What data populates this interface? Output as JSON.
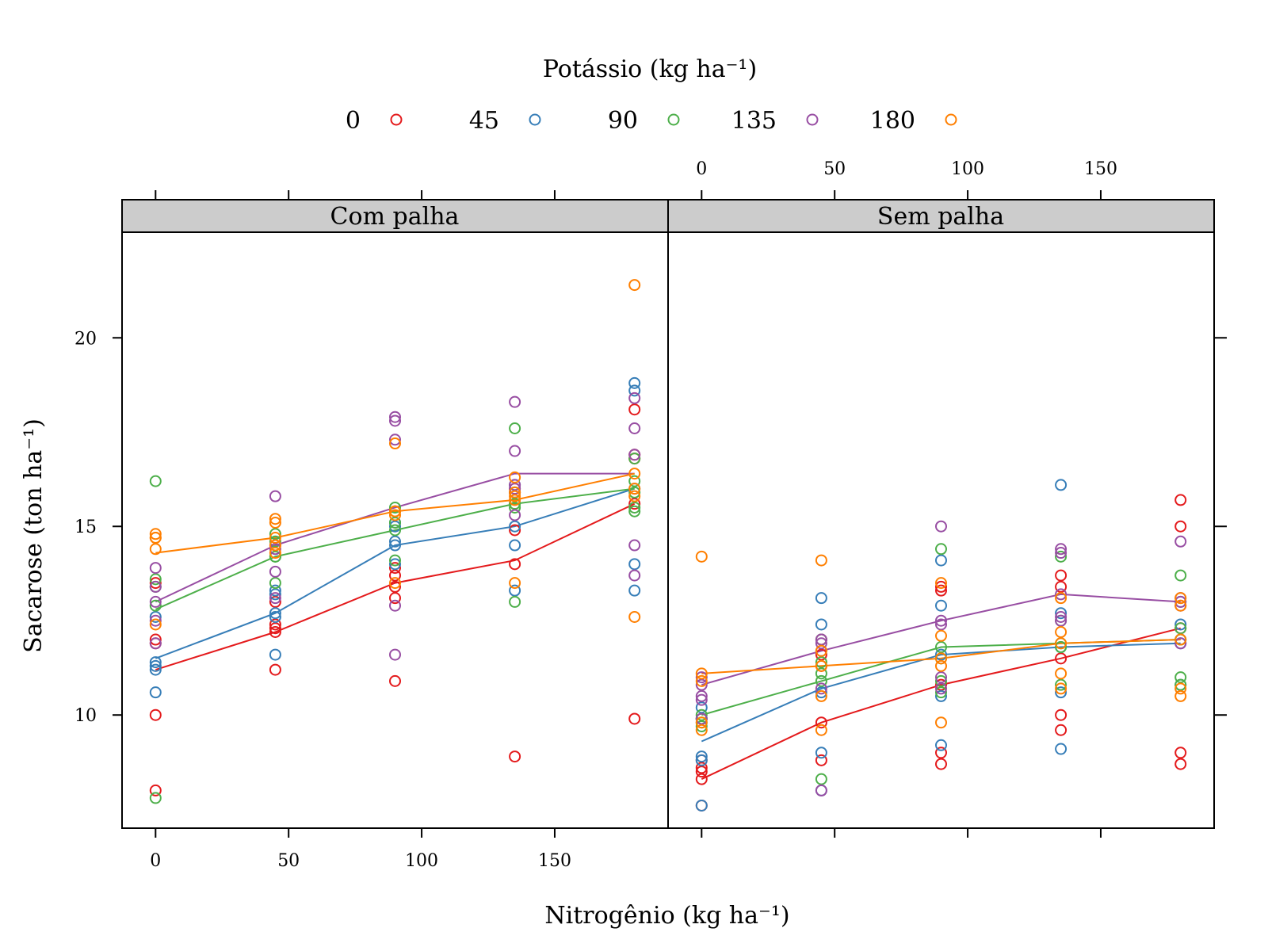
{
  "chart_data": {
    "type": "scatter",
    "legend": {
      "title": "Potássio (kg ha⁻¹)",
      "position": "top",
      "items": [
        {
          "label": "0",
          "color": "#e41a1c"
        },
        {
          "label": "45",
          "color": "#377eb8"
        },
        {
          "label": "90",
          "color": "#4daf4a"
        },
        {
          "label": "135",
          "color": "#984ea3"
        },
        {
          "label": "180",
          "color": "#ff7f00"
        }
      ]
    },
    "xlabel": "Nitrogênio (kg ha⁻¹)",
    "ylabel": "Sacarose (ton ha⁻¹)",
    "xlim": [
      -12.6,
      192.6
    ],
    "ylim": [
      7.0,
      22.8
    ],
    "x_ticks": [
      0,
      50,
      100,
      150
    ],
    "y_ticks": [
      10,
      15,
      20
    ],
    "grid": false,
    "panels": [
      {
        "title": "Com palha",
        "points": [
          {
            "k": 0,
            "x": 0,
            "y": [
              12.0,
              11.9,
              10.0,
              8.0,
              13.5
            ]
          },
          {
            "k": 0,
            "x": 45,
            "y": [
              12.2,
              12.4,
              13.0,
              11.2,
              12.3
            ]
          },
          {
            "k": 0,
            "x": 90,
            "y": [
              13.4,
              13.9,
              13.1,
              10.9,
              13.7
            ]
          },
          {
            "k": 0,
            "x": 135,
            "y": [
              14.0,
              14.9,
              8.9,
              15.9,
              16.0
            ]
          },
          {
            "k": 0,
            "x": 180,
            "y": [
              15.6,
              16.8,
              18.1,
              9.9,
              16.9
            ]
          },
          {
            "k": 45,
            "x": 0,
            "y": [
              11.3,
              11.4,
              10.6,
              11.2,
              12.6
            ]
          },
          {
            "k": 45,
            "x": 45,
            "y": [
              12.7,
              13.2,
              11.6,
              12.6,
              13.3
            ]
          },
          {
            "k": 45,
            "x": 90,
            "y": [
              14.5,
              15.0,
              14.0,
              15.1,
              14.6
            ]
          },
          {
            "k": 45,
            "x": 135,
            "y": [
              15.0,
              14.5,
              13.3,
              15.9,
              16.1
            ]
          },
          {
            "k": 45,
            "x": 180,
            "y": [
              16.0,
              18.8,
              18.6,
              13.3,
              14.0
            ]
          },
          {
            "k": 90,
            "x": 0,
            "y": [
              16.2,
              13.6,
              7.8,
              13.4,
              12.9
            ]
          },
          {
            "k": 90,
            "x": 45,
            "y": [
              14.2,
              14.8,
              13.5,
              14.6,
              14.2
            ]
          },
          {
            "k": 90,
            "x": 90,
            "y": [
              14.9,
              15.5,
              14.1,
              15.4,
              15.1
            ]
          },
          {
            "k": 90,
            "x": 135,
            "y": [
              15.6,
              17.6,
              13.0,
              15.6,
              15.5
            ]
          },
          {
            "k": 90,
            "x": 180,
            "y": [
              15.5,
              15.4,
              15.9,
              16.2,
              16.8
            ]
          },
          {
            "k": 135,
            "x": 0,
            "y": [
              13.9,
              13.0,
              12.5,
              13.4,
              11.9
            ]
          },
          {
            "k": 135,
            "x": 45,
            "y": [
              15.8,
              14.4,
              13.8,
              13.1,
              14.5
            ]
          },
          {
            "k": 135,
            "x": 90,
            "y": [
              17.9,
              17.8,
              17.3,
              12.9,
              11.6
            ]
          },
          {
            "k": 135,
            "x": 135,
            "y": [
              18.3,
              17.0,
              16.0,
              15.3,
              16.1
            ]
          },
          {
            "k": 135,
            "x": 180,
            "y": [
              18.4,
              17.6,
              16.9,
              14.5,
              13.7
            ]
          },
          {
            "k": 180,
            "x": 0,
            "y": [
              14.8,
              14.7,
              14.4,
              12.4,
              14.7
            ]
          },
          {
            "k": 180,
            "x": 45,
            "y": [
              15.2,
              15.1,
              14.5,
              14.3,
              14.7
            ]
          },
          {
            "k": 180,
            "x": 90,
            "y": [
              17.2,
              15.4,
              15.3,
              13.5,
              15.4
            ]
          },
          {
            "k": 180,
            "x": 135,
            "y": [
              16.3,
              15.9,
              13.5,
              15.8,
              15.7
            ]
          },
          {
            "k": 180,
            "x": 180,
            "y": [
              21.4,
              16.4,
              15.8,
              12.6,
              16.0
            ]
          }
        ],
        "lines": [
          {
            "k": 0,
            "x": [
              0,
              45,
              90,
              135,
              180
            ],
            "y": [
              11.2,
              12.2,
              13.5,
              14.1,
              15.6
            ]
          },
          {
            "k": 45,
            "x": [
              0,
              45,
              90,
              135,
              180
            ],
            "y": [
              11.5,
              12.7,
              14.5,
              15.0,
              16.0
            ]
          },
          {
            "k": 90,
            "x": [
              0,
              45,
              90,
              135,
              180
            ],
            "y": [
              12.8,
              14.2,
              14.9,
              15.6,
              16.0
            ]
          },
          {
            "k": 135,
            "x": [
              0,
              45,
              90,
              135,
              180
            ],
            "y": [
              13.0,
              14.5,
              15.5,
              16.4,
              16.4
            ]
          },
          {
            "k": 180,
            "x": [
              0,
              45,
              90,
              135,
              180
            ],
            "y": [
              14.3,
              14.7,
              15.4,
              15.7,
              16.4
            ]
          }
        ]
      },
      {
        "title": "Sem palha",
        "points": [
          {
            "k": 0,
            "x": 0,
            "y": [
              8.3,
              8.5,
              8.6,
              7.6,
              8.8
            ]
          },
          {
            "k": 0,
            "x": 45,
            "y": [
              9.8,
              8.8,
              11.3,
              11.6,
              12.0
            ]
          },
          {
            "k": 0,
            "x": 90,
            "y": [
              10.8,
              9.0,
              8.7,
              13.4,
              13.3
            ]
          },
          {
            "k": 0,
            "x": 135,
            "y": [
              11.5,
              10.0,
              9.6,
              13.7,
              13.4
            ]
          },
          {
            "k": 0,
            "x": 180,
            "y": [
              12.3,
              15.0,
              15.7,
              8.7,
              9.0
            ]
          },
          {
            "k": 45,
            "x": 0,
            "y": [
              8.9,
              7.6,
              10.2,
              9.9,
              8.8
            ]
          },
          {
            "k": 45,
            "x": 45,
            "y": [
              10.6,
              13.1,
              12.4,
              9.0,
              8.0
            ]
          },
          {
            "k": 45,
            "x": 90,
            "y": [
              11.6,
              14.1,
              12.9,
              9.2,
              10.5
            ]
          },
          {
            "k": 45,
            "x": 135,
            "y": [
              11.8,
              16.1,
              9.1,
              10.6,
              12.7
            ]
          },
          {
            "k": 45,
            "x": 180,
            "y": [
              11.9,
              12.0,
              12.4,
              13.0,
              10.8
            ]
          },
          {
            "k": 90,
            "x": 0,
            "y": [
              10.0,
              9.9,
              9.7,
              9.8,
              9.9
            ]
          },
          {
            "k": 90,
            "x": 45,
            "y": [
              10.9,
              8.3,
              11.1,
              12.0,
              11.4
            ]
          },
          {
            "k": 90,
            "x": 90,
            "y": [
              11.8,
              14.4,
              11.5,
              10.9,
              10.6
            ]
          },
          {
            "k": 90,
            "x": 135,
            "y": [
              11.9,
              11.8,
              10.8,
              14.2,
              12.5
            ]
          },
          {
            "k": 90,
            "x": 180,
            "y": [
              12.0,
              13.7,
              11.0,
              10.8,
              12.3
            ]
          },
          {
            "k": 135,
            "x": 0,
            "y": [
              10.8,
              10.5,
              11.0,
              10.4,
              9.9
            ]
          },
          {
            "k": 135,
            "x": 45,
            "y": [
              11.7,
              8.0,
              10.7,
              12.0,
              11.9
            ]
          },
          {
            "k": 135,
            "x": 90,
            "y": [
              12.5,
              15.0,
              12.4,
              10.7,
              11.0
            ]
          },
          {
            "k": 135,
            "x": 135,
            "y": [
              13.2,
              14.4,
              14.3,
              12.6,
              12.5
            ]
          },
          {
            "k": 135,
            "x": 180,
            "y": [
              13.0,
              14.6,
              12.9,
              11.9,
              13.1
            ]
          },
          {
            "k": 180,
            "x": 0,
            "y": [
              11.1,
              14.2,
              9.6,
              10.9,
              9.8
            ]
          },
          {
            "k": 180,
            "x": 45,
            "y": [
              11.3,
              14.1,
              9.6,
              10.5,
              11.7
            ]
          },
          {
            "k": 180,
            "x": 90,
            "y": [
              11.5,
              13.5,
              12.1,
              9.8,
              11.3
            ]
          },
          {
            "k": 180,
            "x": 135,
            "y": [
              11.9,
              11.1,
              13.1,
              10.7,
              12.2
            ]
          },
          {
            "k": 180,
            "x": 180,
            "y": [
              12.0,
              10.5,
              12.9,
              13.1,
              10.7
            ]
          }
        ],
        "lines": [
          {
            "k": 0,
            "x": [
              0,
              45,
              90,
              135,
              180
            ],
            "y": [
              8.3,
              9.8,
              10.8,
              11.5,
              12.3
            ]
          },
          {
            "k": 45,
            "x": [
              0,
              45,
              90,
              135,
              180
            ],
            "y": [
              9.3,
              10.7,
              11.6,
              11.8,
              11.9
            ]
          },
          {
            "k": 90,
            "x": [
              0,
              45,
              90,
              135,
              180
            ],
            "y": [
              10.0,
              10.9,
              11.8,
              11.9,
              12.0
            ]
          },
          {
            "k": 135,
            "x": [
              0,
              45,
              90,
              135,
              180
            ],
            "y": [
              10.8,
              11.7,
              12.5,
              13.2,
              13.0
            ]
          },
          {
            "k": 180,
            "x": [
              0,
              45,
              90,
              135,
              180
            ],
            "y": [
              11.1,
              11.3,
              11.5,
              11.9,
              12.0
            ]
          }
        ]
      }
    ]
  }
}
